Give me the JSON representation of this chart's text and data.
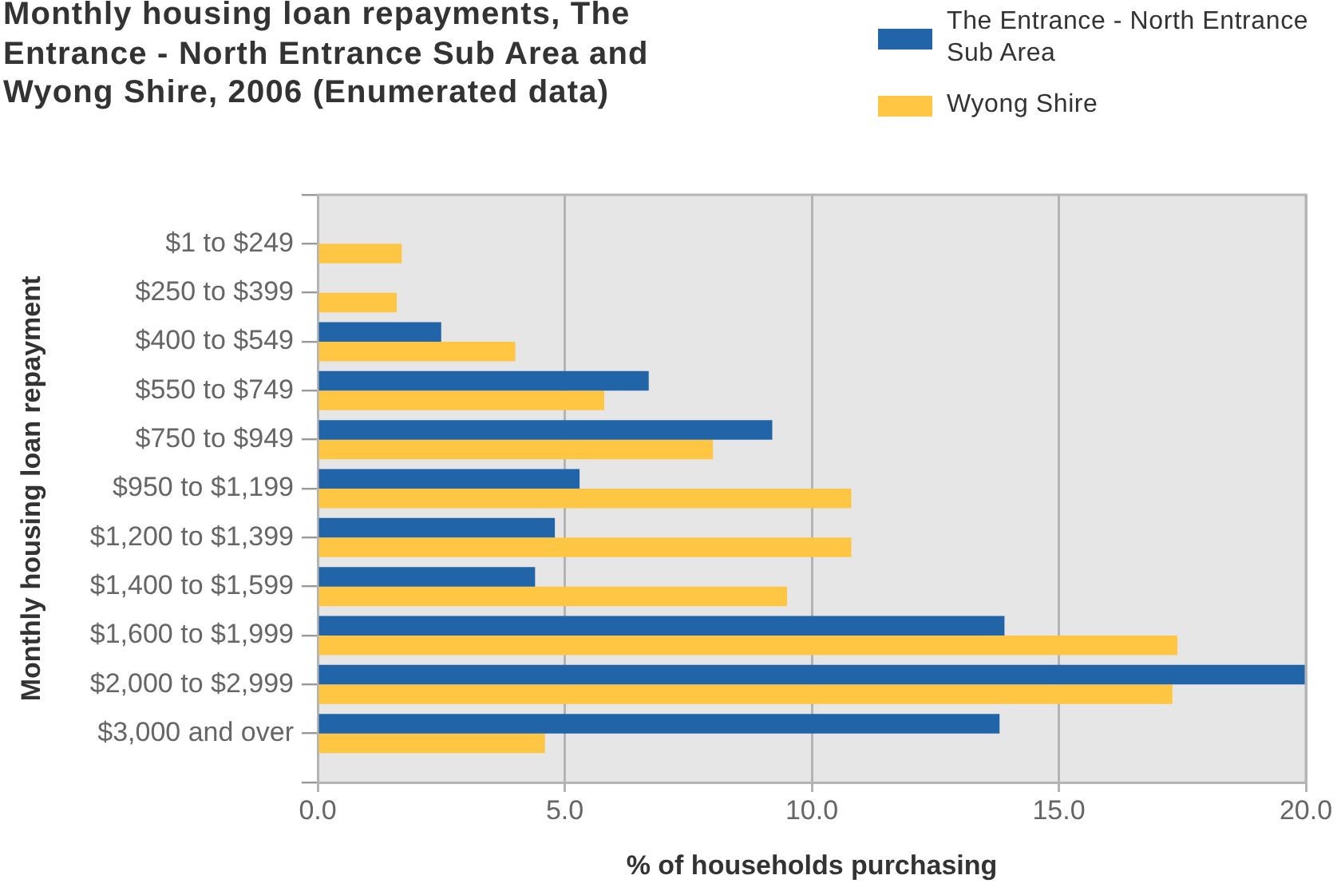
{
  "chart_data": {
    "type": "bar",
    "orientation": "horizontal",
    "title": "Monthly housing loan repayments, The Entrance - North Entrance Sub Area and Wyong Shire, 2006 (Enumerated data)",
    "xlabel": "% of households purchasing",
    "ylabel": "Monthly housing loan repayment",
    "categories": [
      "$1 to $249",
      "$250 to $399",
      "$400 to $549",
      "$550 to $749",
      "$750 to $949",
      "$950 to $1,199",
      "$1,200 to $1,399",
      "$1,400 to $1,599",
      "$1,600 to $1,999",
      "$2,000 to $2,999",
      "$3,000 and over"
    ],
    "series": [
      {
        "name": "The Entrance - North Entrance Sub Area",
        "color": "#2264a8",
        "values": [
          0,
          0,
          2.5,
          6.7,
          9.2,
          5.3,
          4.8,
          4.4,
          13.9,
          20.0,
          13.8
        ]
      },
      {
        "name": "Wyong Shire",
        "color": "#fec643",
        "values": [
          1.7,
          1.6,
          4.0,
          5.8,
          8.0,
          10.8,
          10.8,
          9.5,
          17.4,
          17.3,
          4.6
        ]
      }
    ],
    "xlim": [
      0,
      20
    ],
    "xticks": [
      {
        "value": 0,
        "label": "0.0"
      },
      {
        "value": 5,
        "label": "5.0"
      },
      {
        "value": 10,
        "label": "10.0"
      },
      {
        "value": 15,
        "label": "15.0"
      },
      {
        "value": 20,
        "label": "20.0"
      }
    ],
    "grid": "x",
    "legend": "top right"
  }
}
